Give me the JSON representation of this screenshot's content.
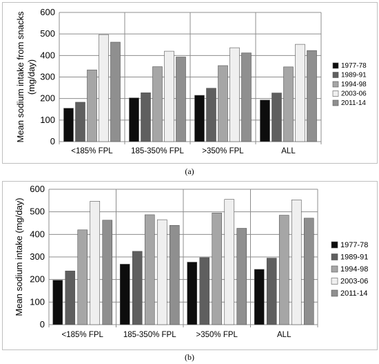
{
  "legend_colors": {
    "1977-78": "#0d0d0d",
    "1989-91": "#5f5f5f",
    "1994-98": "#a6a6a6",
    "2003-06": "#efefef",
    "2011-14": "#8f8f8f"
  },
  "chart_data": [
    {
      "type": "bar",
      "panel_label": "(a)",
      "title": "",
      "xlabel": "",
      "ylabel": "Mean sodium intake from snacks (mg/day)",
      "ylabel_lines": [
        "Mean sodium intake from snacks",
        "(mg/day)"
      ],
      "categories": [
        "<185% FPL",
        "185-350% FPL",
        ">350% FPL",
        "ALL"
      ],
      "series": [
        {
          "name": "1977-78",
          "values": [
            155,
            203,
            215,
            193
          ]
        },
        {
          "name": "1989-91",
          "values": [
            183,
            227,
            248,
            226
          ]
        },
        {
          "name": "1994-98",
          "values": [
            333,
            348,
            353,
            347
          ]
        },
        {
          "name": "2003-06",
          "values": [
            497,
            420,
            436,
            452
          ]
        },
        {
          "name": "2011-14",
          "values": [
            462,
            393,
            412,
            423
          ]
        }
      ],
      "ylim": [
        0,
        600
      ],
      "yticks": [
        0,
        100,
        200,
        300,
        400,
        500,
        600
      ],
      "grid": "horizontal",
      "legend_position": "right"
    },
    {
      "type": "bar",
      "panel_label": "(b)",
      "title": "",
      "xlabel": "",
      "ylabel": "Mean sodium intake (mg/day)",
      "ylabel_lines": [
        "Mean sodium intake (mg/day)"
      ],
      "categories": [
        "<185% FPL",
        "185-350% FPL",
        ">350% FPL",
        "ALL"
      ],
      "series": [
        {
          "name": "1977-78",
          "values": [
            197,
            268,
            277,
            245
          ]
        },
        {
          "name": "1989-91",
          "values": [
            238,
            325,
            297,
            295
          ]
        },
        {
          "name": "1994-98",
          "values": [
            420,
            487,
            495,
            485
          ]
        },
        {
          "name": "2003-06",
          "values": [
            547,
            465,
            555,
            553
          ]
        },
        {
          "name": "2011-14",
          "values": [
            463,
            440,
            427,
            472
          ]
        }
      ],
      "ylim": [
        0,
        600
      ],
      "yticks": [
        0,
        100,
        200,
        300,
        400,
        500,
        600
      ],
      "grid": "horizontal",
      "legend_position": "right"
    }
  ]
}
